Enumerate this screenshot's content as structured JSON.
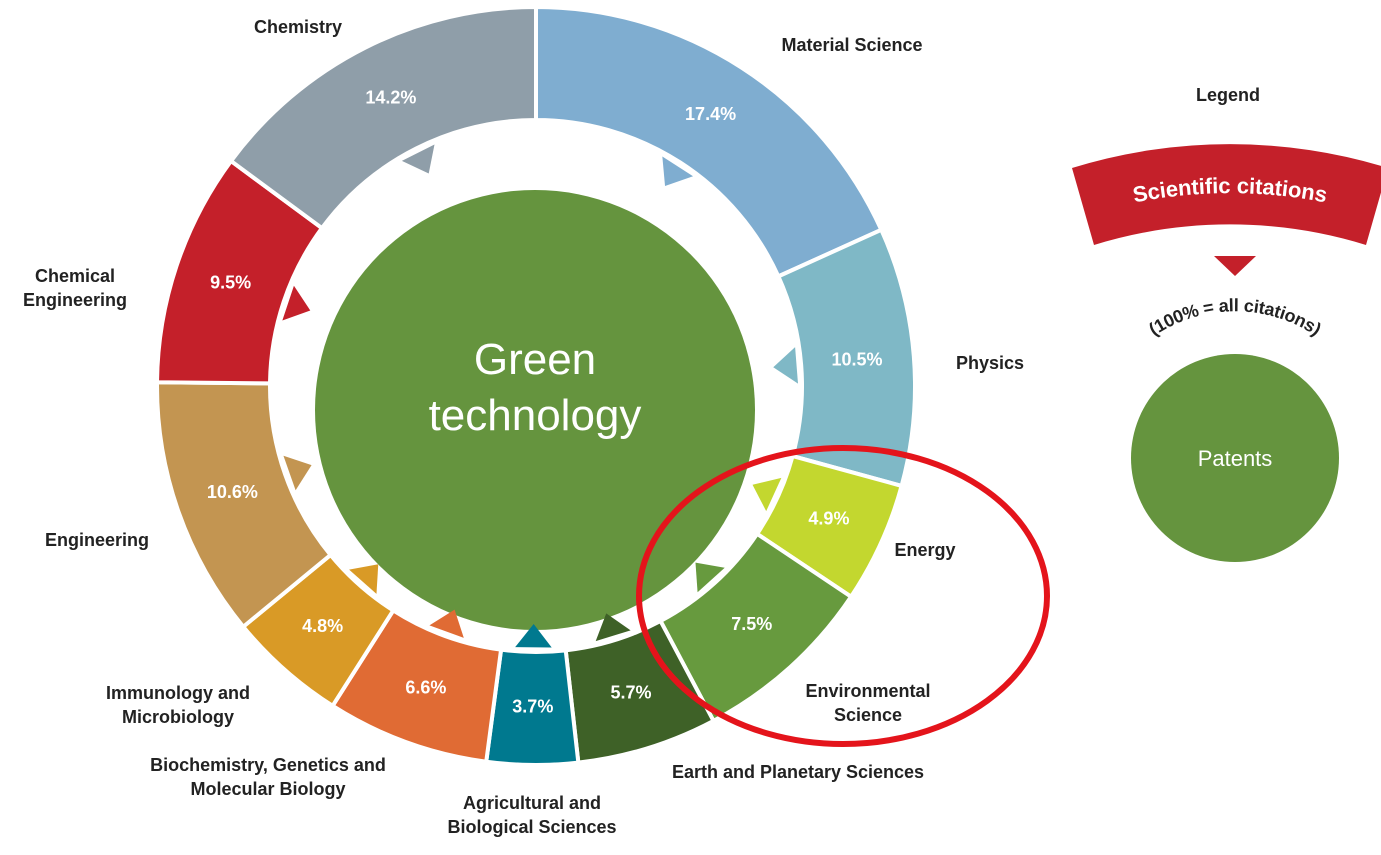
{
  "chart_data": {
    "type": "donut",
    "center_label": "Green technology",
    "categories": [
      "Material Science",
      "Physics",
      "Energy",
      "Environmental Science",
      "Earth and Planetary Sciences",
      "Agricultural and Biological Sciences",
      "Biochemistry, Genetics and Molecular Biology",
      "Immunology and Microbiology",
      "Engineering",
      "Chemical Engineering",
      "Chemistry"
    ],
    "values": [
      17.4,
      10.5,
      4.9,
      7.5,
      5.7,
      3.7,
      6.6,
      4.8,
      10.6,
      9.5,
      14.2
    ],
    "value_labels": [
      "17.4%",
      "10.5%",
      "4.9%",
      "7.5%",
      "5.7%",
      "3.7%",
      "6.6%",
      "4.8%",
      "10.6%",
      "9.5%",
      "14.2%"
    ],
    "colors": [
      "#7fadd0",
      "#7fb8c6",
      "#c3d72f",
      "#679a3e",
      "#3e6127",
      "#00798f",
      "#e06b34",
      "#d99a26",
      "#c39551",
      "#c4202a",
      "#8f9ea9"
    ],
    "legend": {
      "title": "Legend",
      "ring_label": "Scientific citations",
      "ring_note": "(100% = all citations)",
      "center_label": "Patents"
    }
  }
}
